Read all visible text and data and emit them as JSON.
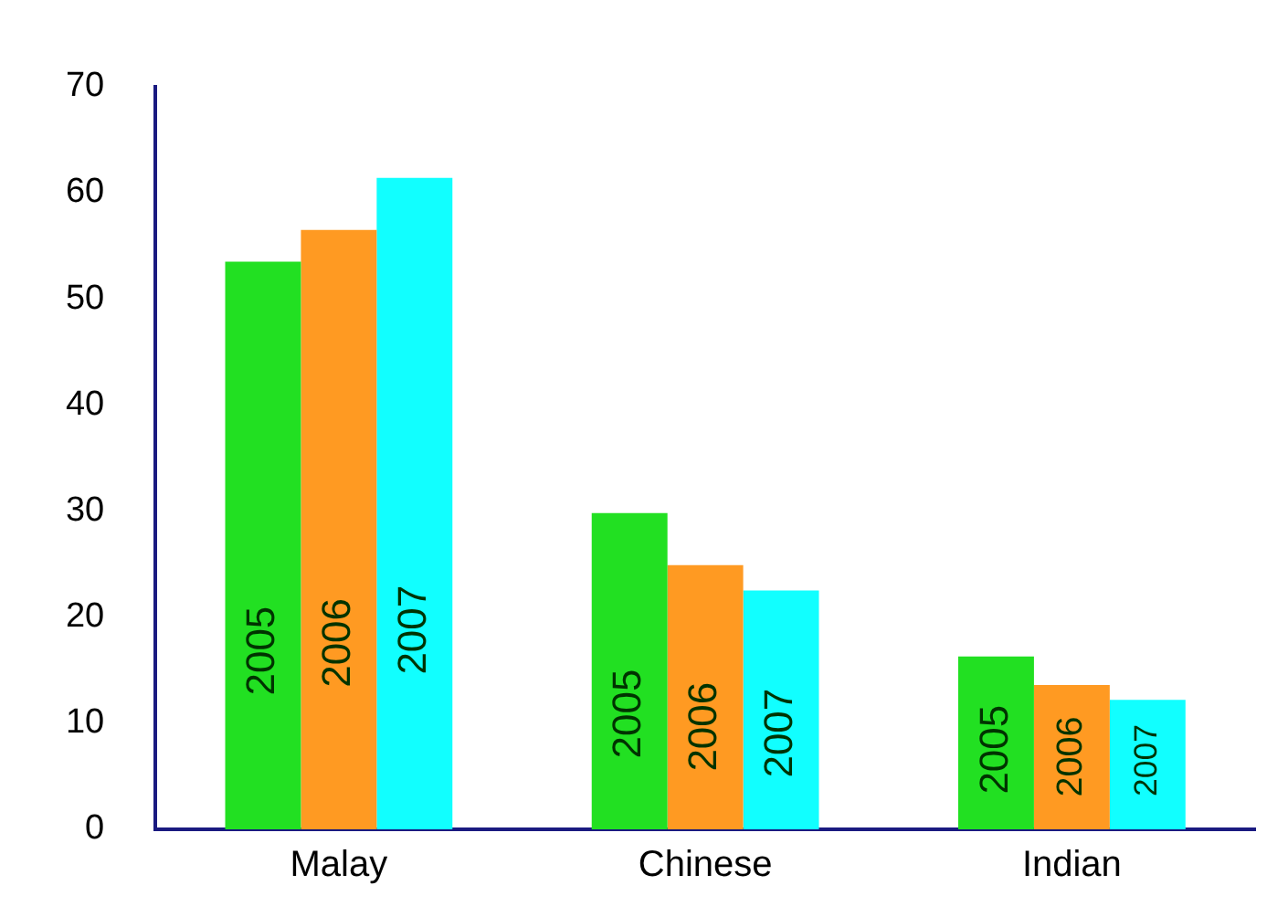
{
  "chart_data": {
    "type": "bar",
    "categories": [
      "Malay",
      "Chinese",
      "Indian"
    ],
    "series": [
      {
        "name": "2005",
        "color": "#22e022",
        "values": [
          53.5,
          29.8,
          16.3
        ]
      },
      {
        "name": "2006",
        "color": "#ff9a22",
        "values": [
          56.5,
          24.9,
          13.6
        ]
      },
      {
        "name": "2007",
        "color": "#11ffff",
        "values": [
          61.4,
          22.5,
          12.2
        ]
      }
    ],
    "ylim": [
      0,
      70
    ],
    "yticks": [
      0,
      10,
      20,
      30,
      40,
      50,
      60,
      70
    ],
    "grid": false,
    "legend": false
  }
}
